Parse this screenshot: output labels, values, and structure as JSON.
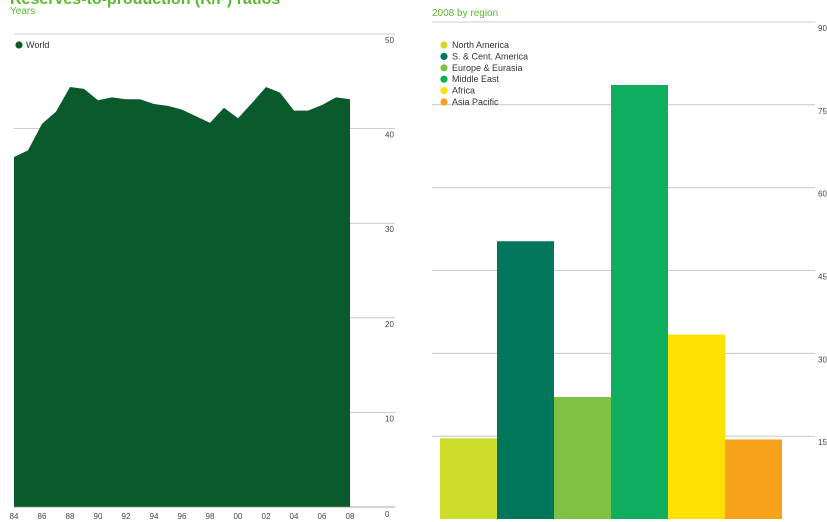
{
  "header": {
    "title": "Reserves-to-production (R/P) ratios",
    "left_unit": "Years",
    "right_subtitle": "2008 by region"
  },
  "chart_data": [
    {
      "type": "area",
      "ylabel": "",
      "xlabel": "",
      "ylim": [
        0,
        50
      ],
      "legend": [
        {
          "name": "World",
          "color": "#0a5a2e"
        }
      ],
      "x_tick_labels": [
        "84",
        "86",
        "88",
        "90",
        "92",
        "94",
        "96",
        "98",
        "00",
        "02",
        "04",
        "06",
        "08"
      ],
      "y_tick_labels": [
        "0",
        "10",
        "20",
        "30",
        "40",
        "50"
      ],
      "series": [
        {
          "name": "World",
          "color": "#0a5a2e",
          "x": [
            1984,
            1985,
            1986,
            1987,
            1988,
            1989,
            1990,
            1991,
            1992,
            1993,
            1994,
            1995,
            1996,
            1997,
            1998,
            1999,
            2000,
            2001,
            2002,
            2003,
            2004,
            2005,
            2006,
            2007,
            2008
          ],
          "values": [
            37.0,
            37.7,
            40.5,
            41.8,
            44.4,
            44.2,
            43.0,
            43.3,
            43.1,
            43.1,
            42.6,
            42.4,
            42.0,
            41.3,
            40.6,
            42.2,
            41.1,
            42.7,
            44.4,
            43.8,
            41.9,
            41.9,
            42.5,
            43.3,
            43.1
          ]
        }
      ],
      "legend_position": "top-left",
      "grid": true
    },
    {
      "type": "bar",
      "ylabel": "",
      "xlabel": "",
      "ylim": [
        0,
        90
      ],
      "y_tick_labels": [
        "15",
        "30",
        "45",
        "60",
        "75",
        "90"
      ],
      "categories": [
        "North America",
        "S. & Cent. America",
        "Europe & Eurasia",
        "Middle East",
        "Africa",
        "Asia Pacific"
      ],
      "colors": [
        "#cddc28",
        "#00775a",
        "#7dc242",
        "#0fae5e",
        "#ffe000",
        "#f8a21c"
      ],
      "values": [
        14.6,
        50.3,
        22.1,
        78.6,
        33.4,
        14.4
      ],
      "legend_position": "top-left",
      "grid": true
    }
  ]
}
